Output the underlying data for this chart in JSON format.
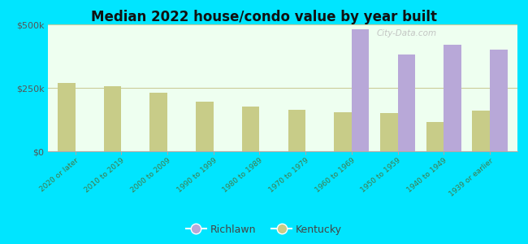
{
  "title": "Median 2022 house/condo value by year built",
  "categories": [
    "2020 or later",
    "2010 to 2019",
    "2000 to 2009",
    "1990 to 1999",
    "1980 to 1989",
    "1970 to 1979",
    "1960 to 1969",
    "1950 to 1959",
    "1940 to 1949",
    "1939 or earlier"
  ],
  "richlawn_values": [
    null,
    null,
    null,
    null,
    null,
    null,
    480000,
    380000,
    420000,
    400000
  ],
  "kentucky_values": [
    270000,
    255000,
    230000,
    195000,
    175000,
    165000,
    155000,
    150000,
    115000,
    160000
  ],
  "ylim": [
    0,
    500000
  ],
  "ytick_labels": [
    "$0",
    "$250k",
    "$500k"
  ],
  "richlawn_color": "#b8a8d8",
  "kentucky_color": "#c8cc88",
  "background_color": "#eefff0",
  "outer_background": "#00e5ff",
  "title_color": "#111111",
  "legend_labels": [
    "Richlawn",
    "Kentucky"
  ],
  "bar_width": 0.38,
  "grid_color": "#cccc99",
  "watermark": "City-Data.com"
}
